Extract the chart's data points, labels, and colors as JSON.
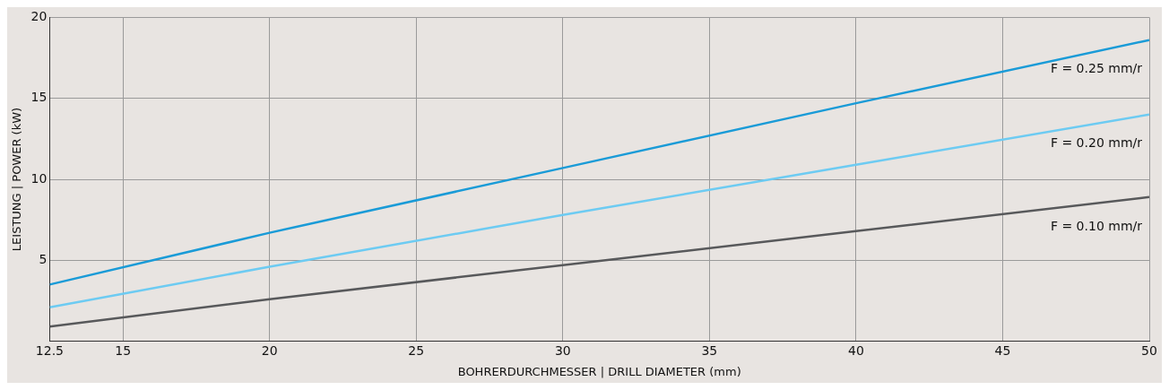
{
  "chart_data": {
    "type": "line",
    "xlabel": "BOHRERDURCHMESSER | DRILL DIAMETER (mm)",
    "ylabel": "LEISTUNG | POWER (kW)",
    "x": [
      12.5,
      20,
      30,
      40,
      50
    ],
    "series": [
      {
        "name": "F = 0.25 mm/r",
        "color": "#1a9bd7",
        "values": [
          3.5,
          6.7,
          10.7,
          14.7,
          18.6
        ]
      },
      {
        "name": "F = 0.20 mm/r",
        "color": "#6dcbf2",
        "values": [
          2.1,
          4.6,
          7.8,
          10.9,
          14.0
        ]
      },
      {
        "name": "F = 0.10 mm/r",
        "color": "#58595b",
        "values": [
          0.9,
          2.6,
          4.7,
          6.8,
          8.9
        ]
      }
    ],
    "xlim": [
      12.5,
      50
    ],
    "xticks": [
      12.5,
      15,
      20,
      25,
      30,
      35,
      40,
      45,
      50
    ],
    "ylim": [
      0,
      20
    ],
    "yticks": [
      {
        "value": 0,
        "label": null
      },
      5,
      10,
      15,
      20
    ],
    "grid": true,
    "legend": false,
    "marker": "none",
    "line_style": "solid"
  }
}
